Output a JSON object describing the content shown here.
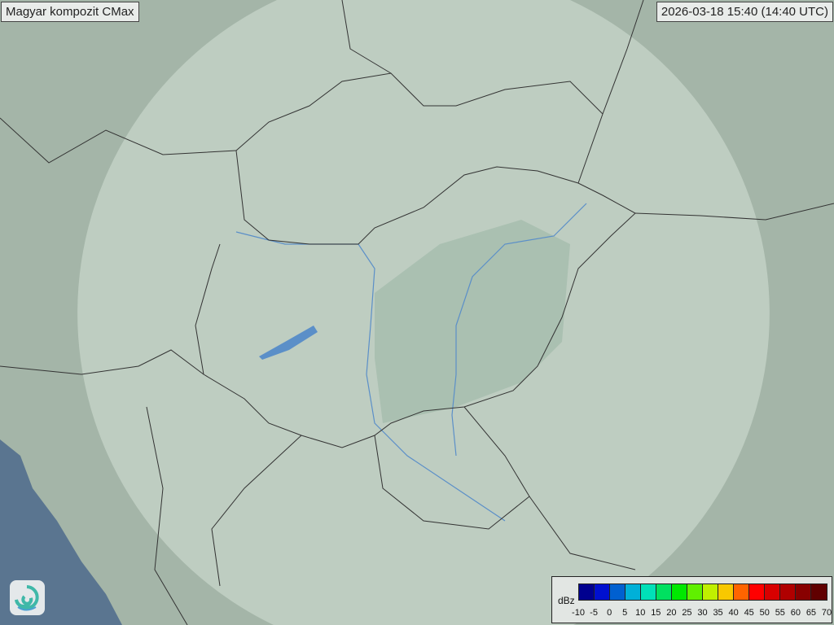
{
  "title": "Magyar kompozit  CMax",
  "timestamp": "2026-03-18 15:40 (14:40 UTC)",
  "logo": "swirl-logo-icon",
  "legend": {
    "unit": "dBz",
    "ticks": [
      "-10",
      "-5",
      "0",
      "5",
      "10",
      "15",
      "20",
      "25",
      "30",
      "35",
      "40",
      "45",
      "50",
      "55",
      "60",
      "65",
      "70"
    ],
    "colors": [
      "#00008f",
      "#0010d0",
      "#0060d0",
      "#00b0d8",
      "#00e0b8",
      "#00e060",
      "#00e800",
      "#60f000",
      "#c0f000",
      "#f8c800",
      "#ff6400",
      "#ff0000",
      "#d80000",
      "#b00000",
      "#880000",
      "#600000"
    ]
  },
  "colors": {
    "land": "#a4b5a8",
    "sea": "#5a7590",
    "radar_coverage": "#c8d6cc",
    "border": "#333333",
    "river": "#5b8fc8"
  }
}
